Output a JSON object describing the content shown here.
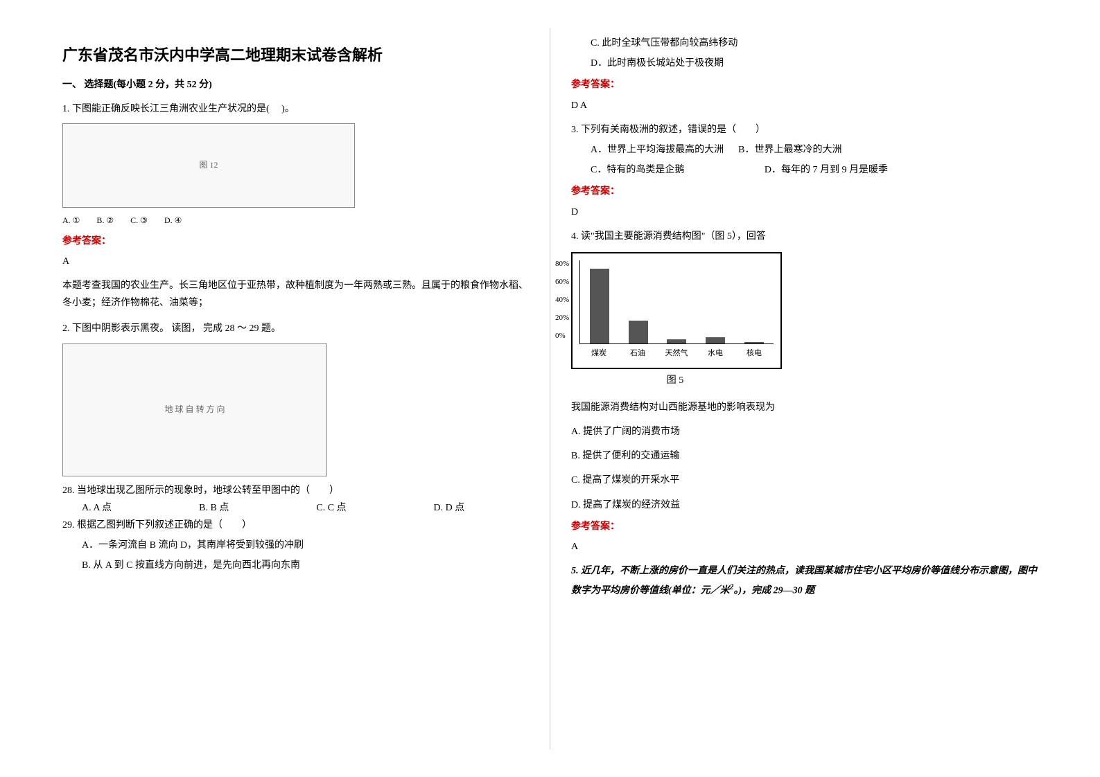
{
  "title": "广东省茂名市沃内中学高二地理期末试卷含解析",
  "section1_header": "一、 选择题(每小题 2 分，共 52 分)",
  "q1": {
    "stem": "1. 下图能正确反映长江三角洲农业生产状况的是(　 )。",
    "img_caption": "图 12",
    "opts": "A. ①　　B. ②　　C. ③　　D. ④",
    "answer_label": "参考答案：",
    "answer": "A",
    "explain": "本题考查我国的农业生产。长三角地区位于亚热带，故种植制度为一年两熟或三熟。且属于的粮食作物水稻、冬小麦；经济作物棉花、油菜等；"
  },
  "q2": {
    "stem": "2. 下图中阴影表示黑夜。 读图， 完成 28 ～ 29 题。",
    "img_caption": "地 球 自 转 方 向",
    "sub28": "28. 当地球出现乙图所示的现象时，地球公转至甲图中的（　　）",
    "sub28_opts": "　　A. A 点　　　　　　　　　B. B 点　　　　　　　　　C. C 点　　　　　　　　　D. D 点",
    "sub29": "29. 根据乙图判断下列叙述正确的是（　　）",
    "optA": "　　A．一条河流自 B 流向 D，其南岸将受到较强的冲刷",
    "optB": "　　B. 从 A 到 C 按直线方向前进，是先向西北再向东南",
    "optC": "　　C. 此时全球气压带都向较高纬移动",
    "optD": "　　D．此时南极长城站处于极夜期",
    "answer_label": "参考答案：",
    "answer": "D  A"
  },
  "q3": {
    "stem": "3. 下列有关南极洲的叙述，错误的是（　　）",
    "optA": "　　A．世界上平均海拔最高的大洲",
    "optB": "B．世界上最寒冷的大洲",
    "optC": "　　C．特有的鸟类是企鹅",
    "optD": "　　　　　　　　D．每年的 7 月到 9 月是暖季",
    "answer_label": "参考答案：",
    "answer": "D"
  },
  "q4": {
    "stem": "4. 读\"我国主要能源消费结构图\"（图 5），回答",
    "chart": {
      "y_ticks": [
        "80%",
        "60%",
        "40%",
        "20%",
        "0%"
      ],
      "categories": [
        "煤炭",
        "石油",
        "天然气",
        "水电",
        "核电"
      ],
      "values_pct": [
        72,
        22,
        4,
        6,
        1
      ],
      "caption": "图 5",
      "bar_color": "#555555",
      "border_color": "#000000"
    },
    "prompt": "我国能源消费结构对山西能源基地的影响表现为",
    "optA": "A. 提供了广阔的消费市场",
    "optB": "B. 提供了便利的交通运输",
    "optC": "C. 提高了煤炭的开采水平",
    "optD": "D. 提高了煤炭的经济效益",
    "answer_label": "参考答案：",
    "answer": "A"
  },
  "q5": {
    "stem_part1": "5. 近几年，不断上涨的房价一直是人们关注的热点，读我国某城市住宅小区平均房价等值线分布示意图，图中数字为平均房价等值线(单位：元／米",
    "stem_part2": "。)，完成 29—30 题"
  }
}
